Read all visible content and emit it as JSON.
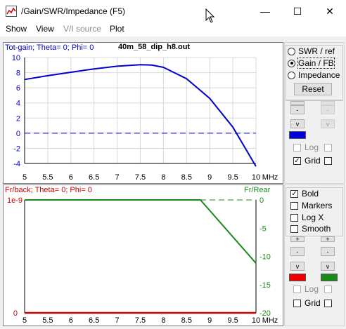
{
  "window": {
    "title": "/Gain/SWR/Impedance (F5)",
    "minimize_glyph": "—",
    "maximize_glyph": "☐",
    "close_glyph": "✕"
  },
  "menu": {
    "items": [
      "Show",
      "View",
      "V/I source",
      "Plot"
    ],
    "disabled_index": 2
  },
  "top_chart": {
    "left_label": "Tot-gain; Theta= 0; Phi= 0",
    "filename": "40m_58_dip_h8.out",
    "y_ticks": [
      "10",
      "8",
      "6",
      "4",
      "2",
      "0",
      "-2",
      "-4"
    ],
    "x_ticks": [
      "5",
      "5.5",
      "6",
      "6.5",
      "7",
      "7.5",
      "8",
      "8.5",
      "9",
      "9.5",
      "10"
    ],
    "x_unit": "MHz",
    "color": "#0000cc"
  },
  "bottom_chart": {
    "left_label": "Fr/back; Theta= 0; Phi= 0",
    "right_label": "Fr/Rear",
    "left_ticks": [
      "1e-9",
      "0"
    ],
    "right_ticks": [
      "0",
      "-5",
      "-10",
      "-15",
      "-20"
    ],
    "x_ticks": [
      "5",
      "5.5",
      "6",
      "6.5",
      "7",
      "7.5",
      "8",
      "8.5",
      "9",
      "9.5",
      "10"
    ],
    "x_unit": "MHz",
    "fb_color": "#cc0000",
    "rear_color": "#1a8a1a"
  },
  "chart_data": [
    {
      "type": "line",
      "title": "Tot-gain; Theta= 0; Phi= 0",
      "xlabel": "MHz",
      "ylabel": "",
      "xlim": [
        5,
        10
      ],
      "ylim": [
        -4,
        10
      ],
      "series": [
        {
          "name": "Tot-gain",
          "x": [
            5,
            5.5,
            6,
            6.5,
            7,
            7.5,
            7.75,
            8,
            8.5,
            9,
            9.5,
            9.75,
            10
          ],
          "y": [
            7.1,
            7.6,
            8.05,
            8.5,
            8.85,
            9.05,
            9.0,
            8.7,
            7.2,
            4.6,
            0.8,
            -1.8,
            -4.4
          ]
        }
      ],
      "reference_lines": [
        0
      ]
    },
    {
      "type": "line",
      "title": "Fr/back; Theta= 0; Phi= 0",
      "xlabel": "MHz",
      "xlim": [
        5,
        10
      ],
      "ylim_left": [
        0,
        1e-09
      ],
      "ylim_right": [
        -20,
        0
      ],
      "series": [
        {
          "name": "Fr/back",
          "axis": "left",
          "x": [
            5,
            10
          ],
          "y": [
            0,
            0
          ]
        },
        {
          "name": "Fr/Rear",
          "axis": "right",
          "x": [
            5,
            8.8,
            10
          ],
          "y": [
            0,
            0,
            -11.2
          ]
        }
      ]
    }
  ],
  "panel_top": {
    "radios": [
      {
        "label": "SWR / ref",
        "checked": false
      },
      {
        "label": "Gain / FB",
        "checked": true
      },
      {
        "label": "Impedance",
        "checked": false
      }
    ],
    "reset_label": "Reset",
    "btns": {
      "up": "-",
      "down": "-",
      "v": "v"
    },
    "swatch_left": "#0000dd",
    "log_label": "Log",
    "grid_label": "Grid",
    "grid_checked": true
  },
  "panel_bottom": {
    "checks": [
      {
        "label": "Bold",
        "checked": true
      },
      {
        "label": "Markers",
        "checked": false
      },
      {
        "label": "Log X",
        "checked": false
      },
      {
        "label": "Smooth",
        "checked": false
      }
    ],
    "btns": {
      "plus": "+",
      "minus": "-",
      "v": "v"
    },
    "swatch_left": "#ee0000",
    "swatch_right": "#1a8a1a",
    "log_label": "Log",
    "grid_label": "Grid"
  }
}
